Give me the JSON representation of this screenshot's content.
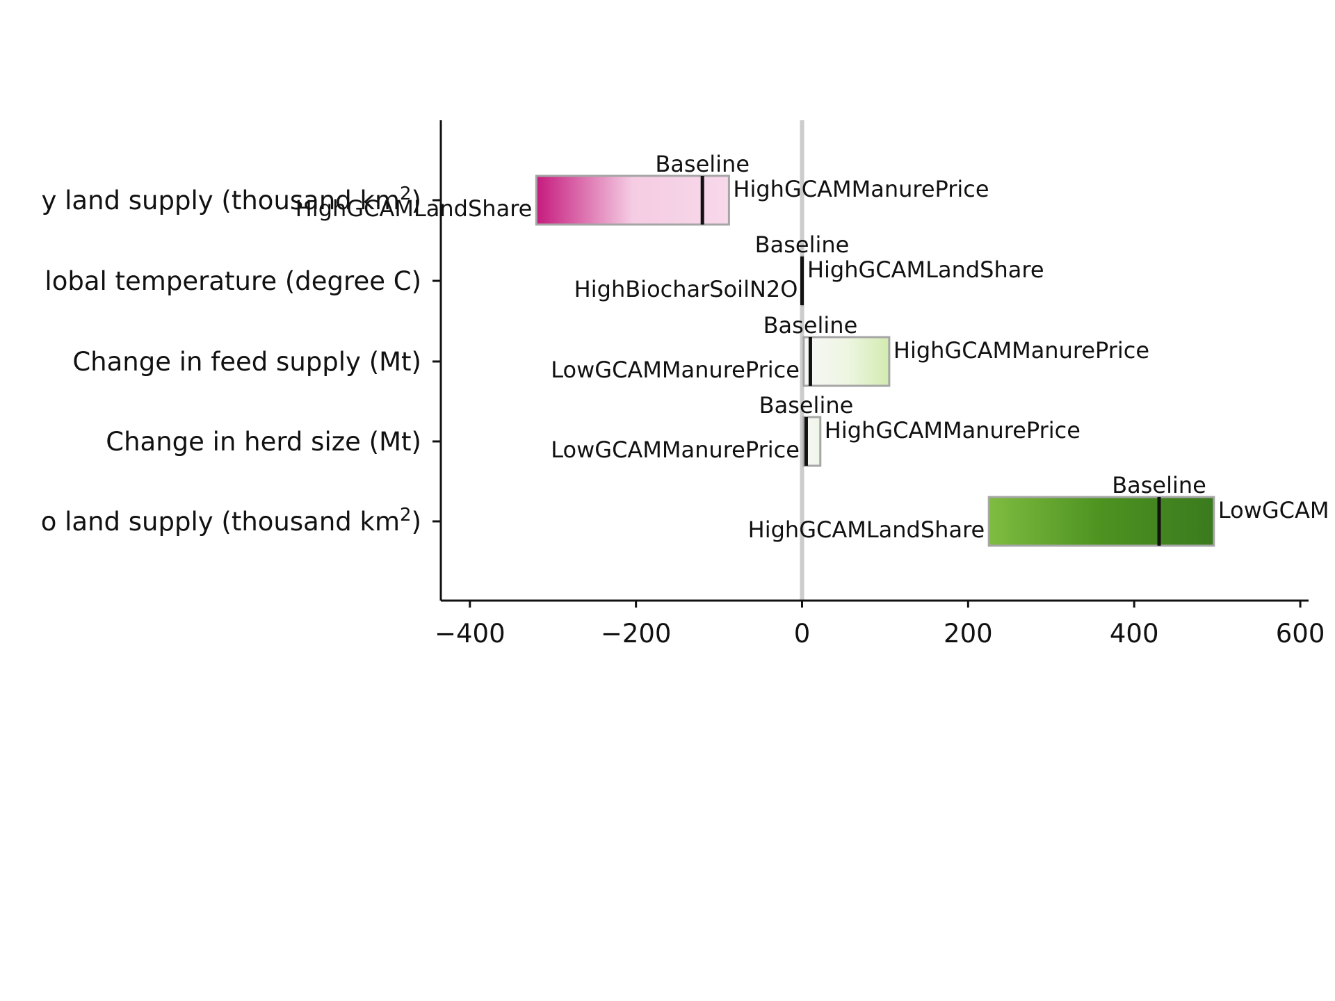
{
  "chart_data": {
    "type": "bar",
    "subtype": "tornado",
    "xlim": [
      -435,
      610
    ],
    "xticks": [
      -400,
      -200,
      0,
      200,
      400,
      600
    ],
    "xtick_labels": [
      "−400",
      "−200",
      "0",
      "200",
      "400",
      "600"
    ],
    "zero_line": true,
    "grid": false,
    "rows": [
      {
        "label_main": "y land supply (thousand km",
        "label_sup": "2",
        "label_tail": ")",
        "low": -320,
        "high": -88,
        "baseline": -120,
        "low_label": "HighGCAMLandShare",
        "high_label": "HighGCAMManurePrice",
        "baseline_label": "Baseline",
        "gradient": [
          "#c51b7d",
          "#f5cce3",
          "#f8d8eb"
        ]
      },
      {
        "label_main": "lobal temperature (degree C)",
        "label_sup": "",
        "label_tail": "",
        "low": -0.05,
        "high": 0.05,
        "baseline": 0,
        "low_label": "HighBiocharSoilN2O",
        "high_label": "HighGCAMLandShare",
        "baseline_label": "Baseline",
        "gradient": [
          "#f7f7f7",
          "#f7f7f7",
          "#f7f7f7"
        ]
      },
      {
        "label_main": "Change in feed supply (Mt)",
        "label_sup": "",
        "label_tail": "",
        "low": 2,
        "high": 105,
        "baseline": 10,
        "low_label": "LowGCAMManurePrice",
        "high_label": "HighGCAMManurePrice",
        "baseline_label": "Baseline",
        "gradient": [
          "#f7f7f7",
          "#eef6e2",
          "#d2ebb0"
        ]
      },
      {
        "label_main": "Change in herd size (Mt)",
        "label_sup": "",
        "label_tail": "",
        "low": 2,
        "high": 22,
        "baseline": 5,
        "low_label": "LowGCAMManurePrice",
        "high_label": "HighGCAMManurePrice",
        "baseline_label": "Baseline",
        "gradient": [
          "#f7f7f7",
          "#f3f6ee",
          "#eef5e6"
        ]
      },
      {
        "label_main": "o land supply (thousand km",
        "label_sup": "2",
        "label_tail": ")",
        "low": 225,
        "high": 496,
        "baseline": 430,
        "low_label": "HighGCAMLandShare",
        "high_label": "LowGCAM",
        "baseline_label": "Baseline",
        "gradient": [
          "#7fbc41",
          "#4d9221",
          "#3a7a1e"
        ]
      }
    ],
    "colors": {
      "bar_edge": "#a6a6a6",
      "baseline_marker": "#111111",
      "zero_line": "#cccccc",
      "axis": "#111111"
    }
  }
}
